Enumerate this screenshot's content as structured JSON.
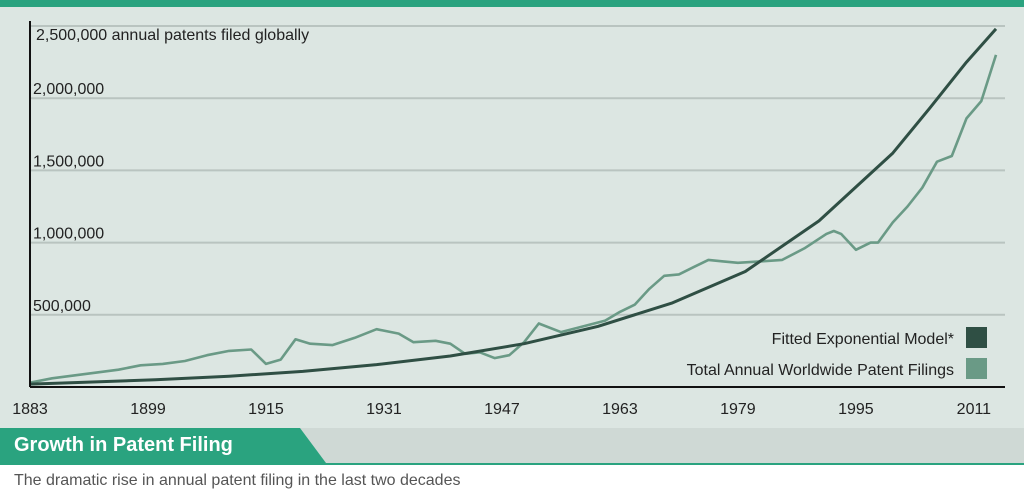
{
  "chart_data": {
    "type": "line",
    "title": "Growth in Patent Filing",
    "subtitle": "The dramatic rise in annual patent filing in the last two decades",
    "ylabel": "2,500,000 annual patents filed globally",
    "xlabel": "",
    "xlim": [
      1883,
      2014
    ],
    "ylim": [
      0,
      2500000
    ],
    "x_ticks": [
      "1883",
      "1899",
      "1915",
      "1931",
      "1947",
      "1963",
      "1979",
      "1995",
      "2011"
    ],
    "y_ticks": [
      "500,000",
      "1,000,000",
      "1,500,000",
      "2,000,000"
    ],
    "grid": true,
    "legend_position": "bottom-right",
    "series": [
      {
        "name": "Fitted Exponential Model*",
        "color": "#2f4f44",
        "x": [
          1883,
          1890,
          1900,
          1910,
          1920,
          1930,
          1940,
          1950,
          1960,
          1970,
          1980,
          1990,
          2000,
          2005,
          2010,
          2014
        ],
        "values": [
          20000,
          32000,
          50000,
          75000,
          108000,
          155000,
          215000,
          300000,
          420000,
          580000,
          800000,
          1150000,
          1620000,
          1930000,
          2250000,
          2480000
        ]
      },
      {
        "name": "Total Annual Worldwide Patent Filings",
        "color": "#6a9a86",
        "x": [
          1883,
          1886,
          1889,
          1892,
          1895,
          1898,
          1901,
          1904,
          1907,
          1910,
          1913,
          1915,
          1917,
          1919,
          1921,
          1924,
          1927,
          1930,
          1933,
          1935,
          1938,
          1940,
          1942,
          1944,
          1946,
          1948,
          1950,
          1952,
          1955,
          1958,
          1961,
          1963,
          1965,
          1967,
          1969,
          1971,
          1973,
          1975,
          1977,
          1979,
          1982,
          1985,
          1988,
          1991,
          1992,
          1993,
          1995,
          1997,
          1998,
          2000,
          2002,
          2004,
          2006,
          2008,
          2010,
          2012,
          2014
        ],
        "values": [
          30000,
          60000,
          80000,
          100000,
          120000,
          150000,
          160000,
          180000,
          220000,
          250000,
          260000,
          160000,
          190000,
          330000,
          300000,
          290000,
          340000,
          400000,
          370000,
          310000,
          320000,
          300000,
          230000,
          240000,
          200000,
          220000,
          310000,
          440000,
          380000,
          420000,
          460000,
          520000,
          570000,
          680000,
          770000,
          780000,
          830000,
          880000,
          870000,
          860000,
          870000,
          880000,
          960000,
          1060000,
          1080000,
          1060000,
          950000,
          1000000,
          1000000,
          1140000,
          1250000,
          1380000,
          1560000,
          1600000,
          1860000,
          1980000,
          2300000
        ]
      }
    ]
  }
}
